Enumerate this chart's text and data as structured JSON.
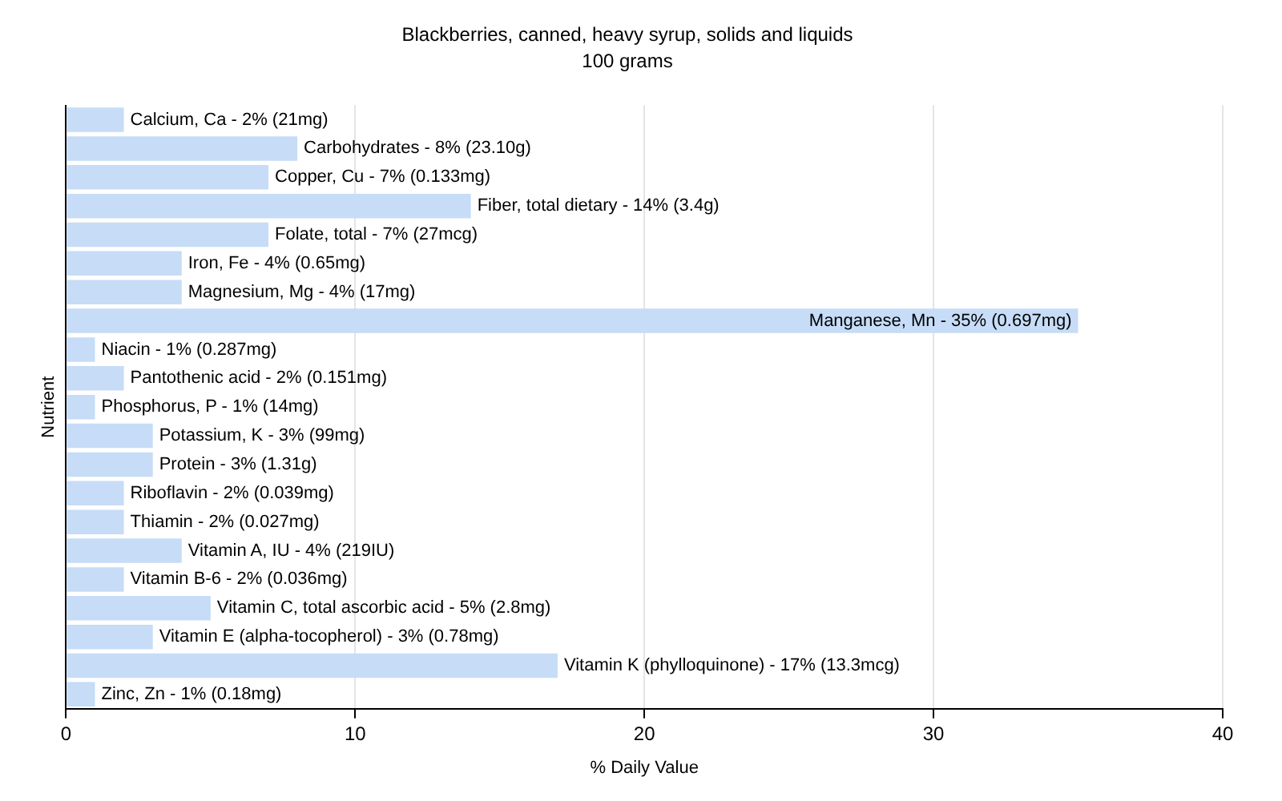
{
  "chart_data": {
    "type": "bar",
    "orientation": "horizontal",
    "title": "Blackberries, canned, heavy syrup, solids and liquids",
    "subtitle": "100 grams",
    "xlabel": "% Daily Value",
    "ylabel": "Nutrient",
    "categories": [
      "Calcium, Ca - 2% (21mg)",
      "Carbohydrates - 8% (23.10g)",
      "Copper, Cu - 7% (0.133mg)",
      "Fiber, total dietary - 14% (3.4g)",
      "Folate, total - 7% (27mcg)",
      "Iron, Fe - 4% (0.65mg)",
      "Magnesium, Mg - 4% (17mg)",
      "Manganese, Mn - 35% (0.697mg)",
      "Niacin - 1% (0.287mg)",
      "Pantothenic acid - 2% (0.151mg)",
      "Phosphorus, P - 1% (14mg)",
      "Potassium, K - 3% (99mg)",
      "Protein - 3% (1.31g)",
      "Riboflavin - 2% (0.039mg)",
      "Thiamin - 2% (0.027mg)",
      "Vitamin A, IU - 4% (219IU)",
      "Vitamin B-6 - 2% (0.036mg)",
      "Vitamin C, total ascorbic acid - 5% (2.8mg)",
      "Vitamin E (alpha-tocopherol) - 3% (0.78mg)",
      "Vitamin K (phylloquinone) - 17% (13.3mcg)",
      "Zinc, Zn - 1% (0.18mg)"
    ],
    "values": [
      2,
      8,
      7,
      14,
      7,
      4,
      4,
      35,
      1,
      2,
      1,
      3,
      3,
      2,
      2,
      4,
      2,
      5,
      3,
      17,
      1
    ],
    "color": "#c6dcf7",
    "xlim": [
      0,
      40
    ],
    "xticks": [
      0,
      10,
      20,
      30,
      40
    ],
    "grid": "x",
    "legend": false
  }
}
